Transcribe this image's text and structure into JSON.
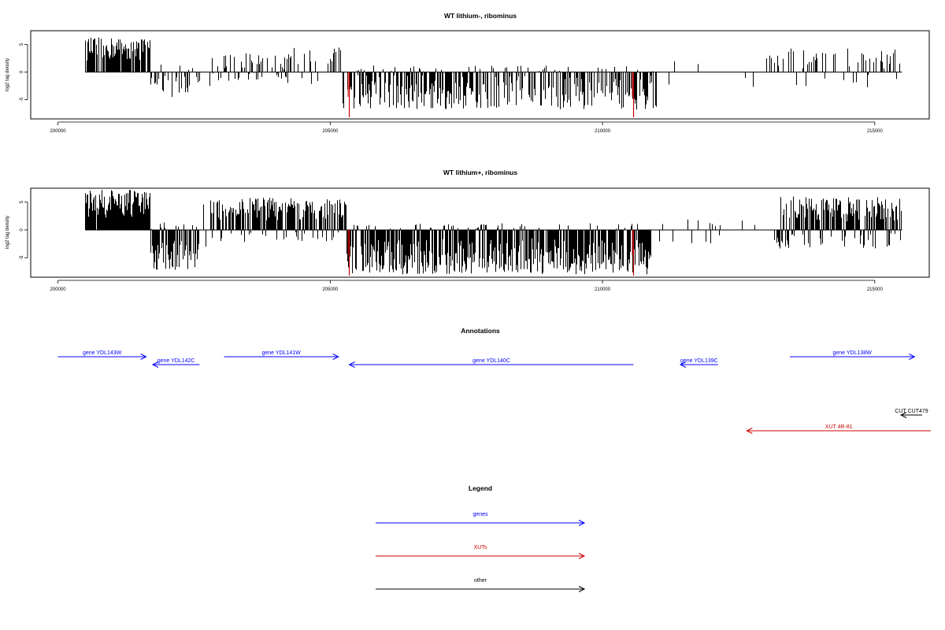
{
  "chart_data": [
    {
      "type": "bar",
      "title": "WT lithium-, ribominus",
      "ylabel": "log2 tag density",
      "xlim": [
        199500,
        216000
      ],
      "ylim": [
        -8.5,
        7.5
      ],
      "x_ticks": [
        200000,
        205000,
        210000,
        215000
      ],
      "y_ticks": [
        5,
        0,
        -5
      ],
      "highlight_color": "#cc0000",
      "highlights": [
        {
          "x": 205350,
          "y": -8.2
        },
        {
          "x": 210570,
          "y": -8.2
        }
      ],
      "profile": [
        {
          "from": 200500,
          "to": 201700,
          "density": 0.85,
          "pos": [
            2,
            6.3
          ],
          "neg": [
            0,
            0
          ]
        },
        {
          "from": 201700,
          "to": 202600,
          "density": 0.45,
          "pos": [
            0,
            1.5
          ],
          "neg": [
            0.5,
            4.8
          ]
        },
        {
          "from": 202600,
          "to": 202800,
          "density": 0.05,
          "pos": [
            0,
            0
          ],
          "neg": [
            0.5,
            2.8
          ]
        },
        {
          "from": 202800,
          "to": 204300,
          "density": 0.45,
          "pos": [
            0.5,
            3.6
          ],
          "neg": [
            0,
            2
          ]
        },
        {
          "from": 204300,
          "to": 205200,
          "density": 0.25,
          "pos": [
            0.5,
            4.5
          ],
          "neg": [
            0,
            2.8
          ]
        },
        {
          "from": 205200,
          "to": 211000,
          "density": 0.65,
          "pos": [
            0,
            1.2
          ],
          "neg": [
            0.5,
            6.8
          ]
        },
        {
          "from": 211000,
          "to": 213000,
          "density": 0.05,
          "pos": [
            0,
            2.1
          ],
          "neg": [
            0.5,
            2.8
          ]
        },
        {
          "from": 213000,
          "to": 215500,
          "density": 0.35,
          "pos": [
            0.5,
            4.3
          ],
          "neg": [
            0.5,
            2.8
          ]
        }
      ]
    },
    {
      "type": "bar",
      "title": "WT lithium+, ribominus",
      "ylabel": "log2 tag density",
      "xlim": [
        199500,
        216000
      ],
      "ylim": [
        -8.5,
        7.5
      ],
      "x_ticks": [
        200000,
        205000,
        210000,
        215000
      ],
      "y_ticks": [
        5,
        0,
        -5
      ],
      "highlight_color": "#cc0000",
      "highlights": [
        {
          "x": 205350,
          "y": -8.2
        },
        {
          "x": 210570,
          "y": -8.2
        }
      ],
      "profile": [
        {
          "from": 200500,
          "to": 201700,
          "density": 0.95,
          "pos": [
            2,
            7.2
          ],
          "neg": [
            0,
            0
          ]
        },
        {
          "from": 201700,
          "to": 202600,
          "density": 0.85,
          "pos": [
            0,
            1.5
          ],
          "neg": [
            1.5,
            7.3
          ]
        },
        {
          "from": 202600,
          "to": 202800,
          "density": 0.2,
          "pos": [
            0,
            4.8
          ],
          "neg": [
            0.5,
            3.5
          ]
        },
        {
          "from": 202800,
          "to": 205300,
          "density": 0.85,
          "pos": [
            1.5,
            5.8
          ],
          "neg": [
            0,
            2.2
          ]
        },
        {
          "from": 205300,
          "to": 210900,
          "density": 0.9,
          "pos": [
            0,
            1.2
          ],
          "neg": [
            1.5,
            8.0
          ]
        },
        {
          "from": 210900,
          "to": 213200,
          "density": 0.12,
          "pos": [
            0,
            2.1
          ],
          "neg": [
            0.5,
            2.8
          ]
        },
        {
          "from": 213200,
          "to": 215500,
          "density": 0.9,
          "pos": [
            1.5,
            6.0
          ],
          "neg": [
            0.5,
            3.5
          ]
        }
      ]
    }
  ],
  "annotations": {
    "title": "Annotations",
    "features": [
      {
        "label": "gene YDL143W",
        "start": 200000,
        "end": 201620,
        "strand": "+",
        "row": 0,
        "color": "#0000ff"
      },
      {
        "label": "gene YDL142C",
        "start": 201740,
        "end": 202600,
        "strand": "-",
        "row": 1,
        "color": "#0000ff"
      },
      {
        "label": "gene YDL141W",
        "start": 203050,
        "end": 205150,
        "strand": "+",
        "row": 0,
        "color": "#0000ff"
      },
      {
        "label": "gene YDL140C",
        "start": 205350,
        "end": 210570,
        "strand": "-",
        "row": 1,
        "color": "#0000ff"
      },
      {
        "label": "gene YDL139C",
        "start": 211430,
        "end": 212120,
        "strand": "-",
        "row": 1,
        "color": "#0000ff"
      },
      {
        "label": "gene YDL138W",
        "start": 213440,
        "end": 215730,
        "strand": "+",
        "row": 0,
        "color": "#0000ff"
      },
      {
        "label": "CUT CUT479",
        "start": 215480,
        "end": 215870,
        "strand": "-",
        "row": 2,
        "color": "#000000"
      },
      {
        "label": "XUT 4R-81",
        "start": 212650,
        "end": 216050,
        "strand": "-",
        "row": 3,
        "color": "#cc0000"
      }
    ]
  },
  "legend": {
    "title": "Legend",
    "items": [
      {
        "label": "genes",
        "color": "#0000ff"
      },
      {
        "label": "XUTs",
        "color": "#cc0000"
      },
      {
        "label": "other",
        "color": "#000000"
      }
    ]
  }
}
